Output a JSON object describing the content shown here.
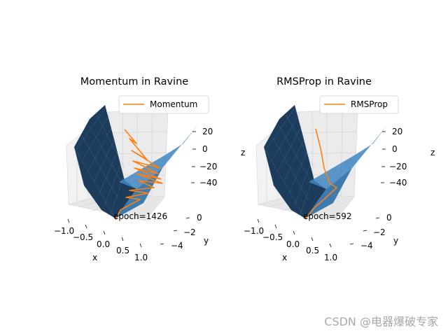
{
  "chart_data": [
    {
      "type": "surface",
      "title": "Momentum in Ravine",
      "xlabel": "x",
      "ylabel": "y",
      "zlabel": "z",
      "x_ticks": [
        "−1.0",
        "−0.5",
        "0.0",
        "0.5",
        "1.0"
      ],
      "y_ticks": [
        "0",
        "−2",
        "−4"
      ],
      "z_ticks": [
        "20",
        "0",
        "−20",
        "−40"
      ],
      "xlim": [
        -1.0,
        1.0
      ],
      "ylim": [
        -5,
        1
      ],
      "zlim": [
        -50,
        25
      ],
      "surface_color": "#1f77b4",
      "series": [
        {
          "name": "Momentum",
          "color": "#ff7f0e"
        }
      ],
      "legend": "top-right",
      "annotation": "epoch=1426"
    },
    {
      "type": "surface",
      "title": "RMSProp in Ravine",
      "xlabel": "x",
      "ylabel": "y",
      "zlabel": "z",
      "x_ticks": [
        "−1.0",
        "−0.5",
        "0.0",
        "0.5",
        "1.0"
      ],
      "y_ticks": [
        "0",
        "−2",
        "−4"
      ],
      "z_ticks": [
        "20",
        "0",
        "−20",
        "−40"
      ],
      "xlim": [
        -1.0,
        1.0
      ],
      "ylim": [
        -5,
        1
      ],
      "zlim": [
        -50,
        25
      ],
      "surface_color": "#1f77b4",
      "series": [
        {
          "name": "RMSProp",
          "color": "#ff7f0e"
        }
      ],
      "legend": "top-right",
      "annotation": "epoch=592"
    }
  ],
  "watermark": "CSDN @电器爆破专家"
}
